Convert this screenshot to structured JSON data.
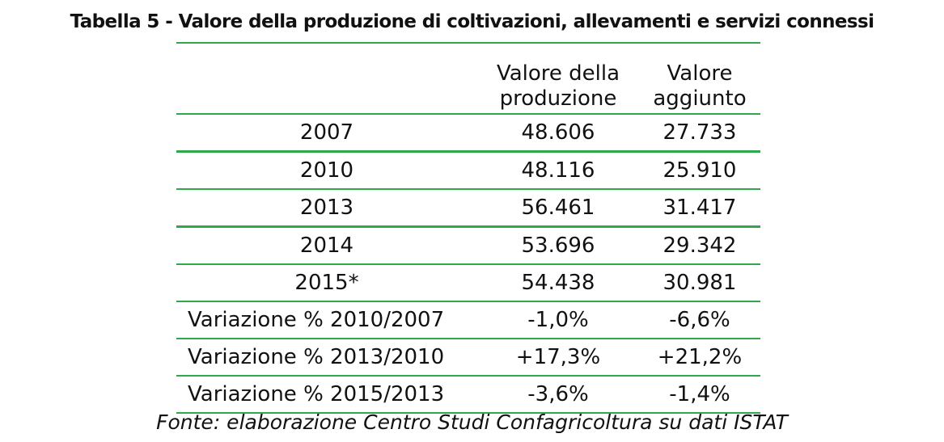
{
  "title": "Tabella 5 - Valore della produzione di coltivazioni, allevamenti e servizi connessi",
  "table": {
    "headers": [
      {
        "line1": "",
        "line2": ""
      },
      {
        "line1": "Valore della",
        "line2": "produzione"
      },
      {
        "line1": "Valore",
        "line2": "aggiunto"
      }
    ],
    "rows": [
      {
        "label": "2007",
        "produzione": "48.606",
        "aggiunto": "27.733"
      },
      {
        "label": "2010",
        "produzione": "48.116",
        "aggiunto": "25.910"
      },
      {
        "label": "2013",
        "produzione": "56.461",
        "aggiunto": "31.417"
      },
      {
        "label": "2014",
        "produzione": "53.696",
        "aggiunto": "29.342"
      },
      {
        "label": "2015*",
        "produzione": "54.438",
        "aggiunto": "30.981"
      },
      {
        "label": "Variazione % 2010/2007",
        "produzione": "-1,0%",
        "aggiunto": "-6,6%"
      },
      {
        "label": "Variazione % 2013/2010",
        "produzione": "+17,3%",
        "aggiunto": "+21,2%"
      },
      {
        "label": "Variazione % 2015/2013",
        "produzione": "-3,6%",
        "aggiunto": "-1,4%"
      }
    ]
  },
  "source": "Fonte: elaborazione Centro Studi Confagricoltura su dati ISTAT",
  "colors": {
    "rule_green": "#2ea84a",
    "text": "#111111",
    "background": "#ffffff"
  }
}
